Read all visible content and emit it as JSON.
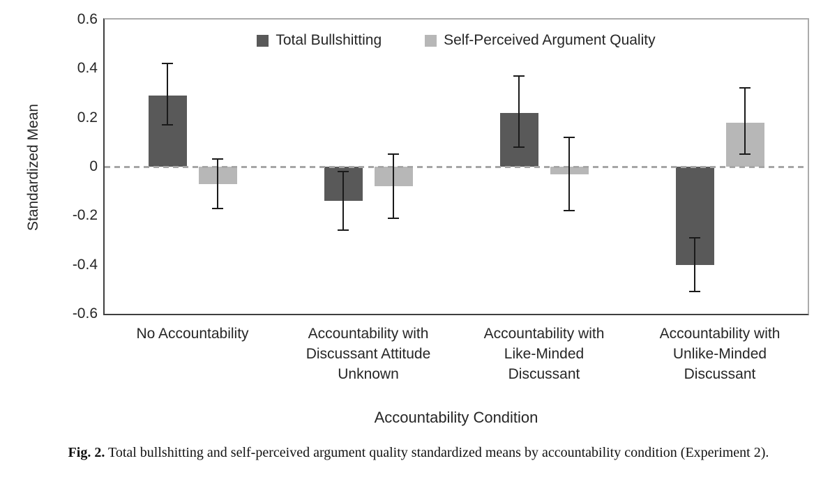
{
  "chart_data": {
    "type": "bar",
    "title": "",
    "ylabel": "Standardized Mean",
    "xlabel": "Accountability Condition",
    "ylim": [
      -0.6,
      0.6
    ],
    "ytick_step": 0.2,
    "yticks": [
      "0.6",
      "0.4",
      "0.2",
      "0",
      "-0.2",
      "-0.4",
      "-0.6"
    ],
    "grid": "off",
    "zero_line_style": "dashed-gray",
    "legend_position": "top-center",
    "categories": [
      "No Accountability",
      "Accountability with\nDiscussant Attitude\nUnknown",
      "Accountability with\nLike-Minded\nDiscussant",
      "Accountability with\nUnlike-Minded\nDiscussant"
    ],
    "series": [
      {
        "name": "Total Bullshitting",
        "color": "#595959",
        "values": [
          0.29,
          -0.14,
          0.22,
          -0.4
        ],
        "error_low": [
          0.17,
          -0.26,
          0.08,
          -0.51
        ],
        "error_high": [
          0.42,
          -0.02,
          0.37,
          -0.29
        ]
      },
      {
        "name": "Self-Perceived Argument Quality",
        "color": "#b7b7b7",
        "values": [
          -0.07,
          -0.08,
          -0.03,
          0.18
        ],
        "error_low": [
          -0.17,
          -0.21,
          -0.18,
          0.05
        ],
        "error_high": [
          0.03,
          0.05,
          0.12,
          0.32
        ]
      }
    ]
  },
  "colors": {
    "error_bar": "#1a1a1a",
    "zero_line": "#a6a6a6",
    "axis_dark": "#3f3f3f",
    "axis_light": "#ababab",
    "text": "#262626"
  },
  "caption": {
    "label": "Fig. 2.",
    "text": " Total bullshitting and self-perceived argument quality standardized means by accountability condition (Experiment 2)."
  }
}
